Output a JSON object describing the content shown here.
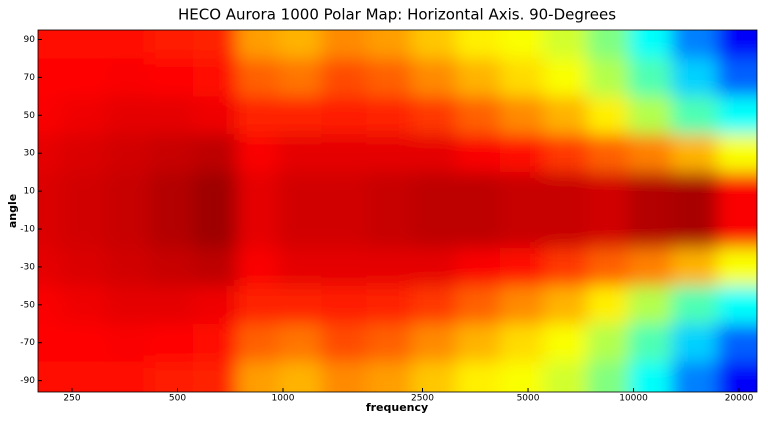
{
  "chart_data": {
    "type": "heatmap",
    "title": "HECO Aurora 1000 Polar Map: Horizontal Axis. 90-Degrees",
    "xlabel": "frequency",
    "ylabel": "angle",
    "xscale": "log",
    "xlim": [
      200,
      22500
    ],
    "xticks": [
      250,
      500,
      1000,
      2500,
      5000,
      10000,
      20000
    ],
    "ylim": [
      -96,
      95
    ],
    "yticks": [
      90,
      70,
      50,
      30,
      10,
      -10,
      -30,
      -50,
      -70,
      -90
    ],
    "colormap": "jet",
    "clim": [
      0,
      1
    ],
    "x": [
      200,
      270,
      360,
      480,
      640,
      850,
      1100,
      1500,
      2000,
      2700,
      3600,
      4800,
      6400,
      8500,
      11000,
      15000,
      20000
    ],
    "y": [
      90,
      70,
      50,
      30,
      10,
      -10,
      -30,
      -50,
      -70,
      -90
    ],
    "z": [
      [
        0.86,
        0.86,
        0.86,
        0.85,
        0.84,
        0.72,
        0.7,
        0.74,
        0.72,
        0.68,
        0.64,
        0.62,
        0.58,
        0.5,
        0.38,
        0.25,
        0.12
      ],
      [
        0.87,
        0.87,
        0.88,
        0.87,
        0.86,
        0.78,
        0.76,
        0.8,
        0.78,
        0.74,
        0.7,
        0.66,
        0.62,
        0.55,
        0.45,
        0.33,
        0.22
      ],
      [
        0.88,
        0.89,
        0.9,
        0.9,
        0.89,
        0.84,
        0.84,
        0.85,
        0.84,
        0.82,
        0.78,
        0.74,
        0.7,
        0.64,
        0.55,
        0.45,
        0.38
      ],
      [
        0.9,
        0.91,
        0.92,
        0.93,
        0.94,
        0.88,
        0.9,
        0.9,
        0.9,
        0.9,
        0.88,
        0.86,
        0.82,
        0.78,
        0.75,
        0.7,
        0.62
      ],
      [
        0.91,
        0.92,
        0.93,
        0.95,
        0.97,
        0.9,
        0.92,
        0.92,
        0.93,
        0.94,
        0.94,
        0.93,
        0.93,
        0.92,
        0.95,
        0.96,
        0.88
      ],
      [
        0.91,
        0.92,
        0.93,
        0.95,
        0.97,
        0.9,
        0.92,
        0.92,
        0.93,
        0.94,
        0.94,
        0.93,
        0.93,
        0.92,
        0.95,
        0.96,
        0.88
      ],
      [
        0.9,
        0.91,
        0.92,
        0.93,
        0.94,
        0.88,
        0.9,
        0.9,
        0.9,
        0.9,
        0.88,
        0.86,
        0.82,
        0.78,
        0.75,
        0.7,
        0.62
      ],
      [
        0.88,
        0.89,
        0.9,
        0.9,
        0.89,
        0.84,
        0.84,
        0.85,
        0.84,
        0.82,
        0.78,
        0.74,
        0.7,
        0.64,
        0.55,
        0.45,
        0.38
      ],
      [
        0.87,
        0.87,
        0.88,
        0.87,
        0.86,
        0.78,
        0.76,
        0.8,
        0.78,
        0.74,
        0.7,
        0.66,
        0.62,
        0.55,
        0.45,
        0.33,
        0.22
      ],
      [
        0.86,
        0.86,
        0.86,
        0.85,
        0.84,
        0.72,
        0.7,
        0.74,
        0.72,
        0.68,
        0.64,
        0.62,
        0.58,
        0.5,
        0.38,
        0.25,
        0.12
      ]
    ]
  }
}
